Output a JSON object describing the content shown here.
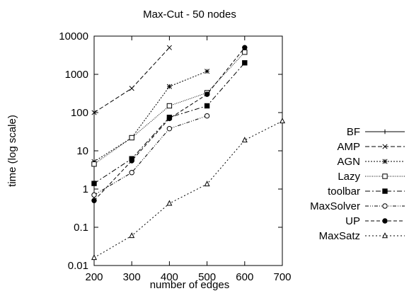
{
  "chart_data": {
    "type": "line",
    "title": "Max-Cut - 50 nodes",
    "xlabel": "number of edges",
    "ylabel": "time (log scale)",
    "x_ticks": [
      "200",
      "300",
      "400",
      "500",
      "600",
      "700"
    ],
    "y_ticks": [
      "0.01",
      "0.1",
      "1",
      "10",
      "100",
      "1000",
      "10000"
    ],
    "xlim": [
      200,
      700
    ],
    "ylim": [
      0.01,
      10000
    ],
    "y_scale": "log",
    "grid": false,
    "legend_position": "right",
    "series": [
      {
        "name": "BF",
        "dash": "none",
        "marker": "plus",
        "x": [],
        "y": []
      },
      {
        "name": "AMP",
        "dash": "6,3",
        "marker": "x",
        "x": [
          200,
          300,
          400
        ],
        "y": [
          100,
          430,
          5000
        ]
      },
      {
        "name": "AGN",
        "dash": "2,2",
        "marker": "star",
        "x": [
          200,
          300,
          400,
          500
        ],
        "y": [
          5.2,
          22,
          480,
          1200
        ]
      },
      {
        "name": "Lazy",
        "dash": "1,1.5",
        "marker": "square-open",
        "x": [
          200,
          300,
          400,
          500,
          600
        ],
        "y": [
          4.5,
          22,
          150,
          330,
          3800
        ]
      },
      {
        "name": "toolbar",
        "dash": "7,3,2,3",
        "marker": "square-filled",
        "x": [
          200,
          300,
          400,
          500,
          600
        ],
        "y": [
          1.4,
          6.2,
          75,
          150,
          2000
        ]
      },
      {
        "name": "MaxSolver",
        "dash": "5,2,1,2,1,2",
        "marker": "circle-open",
        "x": [
          200,
          300,
          400,
          500
        ],
        "y": [
          0.7,
          2.7,
          38,
          82
        ]
      },
      {
        "name": "UP",
        "dash": "5,3",
        "marker": "circle-filled",
        "x": [
          200,
          300,
          400,
          500,
          600
        ],
        "y": [
          0.5,
          5.5,
          70,
          300,
          5000
        ]
      },
      {
        "name": "MaxSatz",
        "dash": "2,3",
        "marker": "triangle-open",
        "x": [
          200,
          300,
          400,
          500,
          600,
          700
        ],
        "y": [
          0.016,
          0.06,
          0.42,
          1.35,
          19,
          60
        ]
      }
    ]
  }
}
